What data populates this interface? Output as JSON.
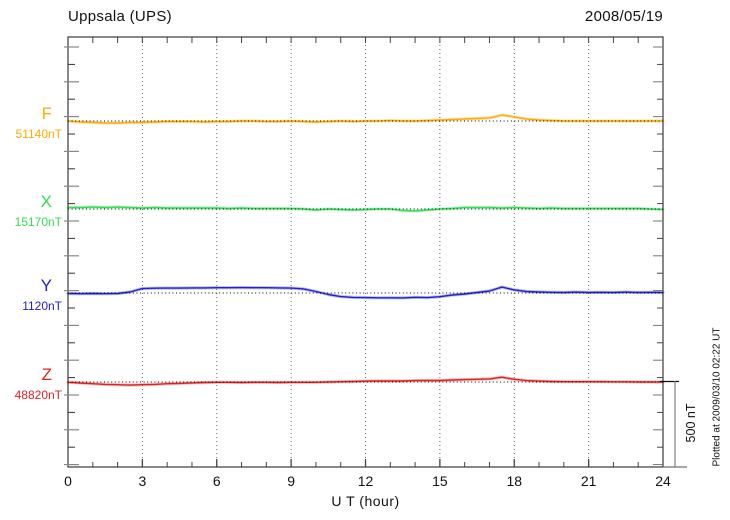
{
  "header": {
    "station_title": "Uppsala (UPS)",
    "date": "2008/05/19"
  },
  "plot_note": "Plotted at 2009/03/10 02:22 UT",
  "scale_bar_label": "500 nT",
  "xaxis_label": "U T (hour)",
  "channels": [
    {
      "label": "F",
      "baseline_label": "51140nT"
    },
    {
      "label": "X",
      "baseline_label": "15170nT"
    },
    {
      "label": "Y",
      "baseline_label": "1120nT"
    },
    {
      "label": "Z",
      "baseline_label": "48820nT"
    }
  ],
  "chart_data": {
    "type": "line",
    "title": "Uppsala (UPS) magnetogram, 2008/05/19",
    "xlabel": "U T (hour)",
    "xlim": [
      0,
      24
    ],
    "x_ticks": [
      0,
      3,
      6,
      9,
      12,
      15,
      18,
      21,
      24
    ],
    "x_step_hours": 0.5,
    "grid": "dotted vertical lines every 3 hours; dotted horizontal baseline per channel",
    "scale_bar": {
      "nT": 500,
      "label": "500 nT"
    },
    "series": [
      {
        "name": "F",
        "baseline_nT": 51140,
        "color": "#FFAA00",
        "deviation_nT": [
          0,
          -6,
          -9,
          -12,
          -12,
          -9,
          -9,
          -6,
          -3,
          -3,
          -3,
          -6,
          -3,
          -3,
          0,
          0,
          -3,
          -3,
          0,
          -3,
          -6,
          -3,
          0,
          -3,
          0,
          0,
          3,
          0,
          0,
          3,
          6,
          9,
          12,
          15,
          18,
          35,
          24,
          12,
          6,
          3,
          0,
          0,
          0,
          0,
          0,
          0,
          0,
          0,
          0
        ]
      },
      {
        "name": "X",
        "baseline_nT": 15170,
        "color": "#33DD55",
        "deviation_nT": [
          9,
          9,
          12,
          9,
          12,
          9,
          6,
          9,
          6,
          6,
          6,
          6,
          6,
          3,
          6,
          3,
          3,
          3,
          3,
          0,
          -6,
          0,
          -3,
          -6,
          -3,
          0,
          0,
          -9,
          -12,
          -6,
          0,
          3,
          9,
          9,
          9,
          6,
          9,
          6,
          3,
          6,
          3,
          3,
          3,
          3,
          3,
          3,
          3,
          0,
          -3
        ]
      },
      {
        "name": "Y",
        "baseline_nT": 1120,
        "color": "#2222CC",
        "deviation_nT": [
          -3,
          -4,
          -3,
          -4,
          -3,
          6,
          26,
          28,
          29,
          29,
          30,
          30,
          31,
          31,
          32,
          31,
          31,
          30,
          29,
          24,
          9,
          -9,
          -21,
          -26,
          -27,
          -28,
          -28,
          -29,
          -25,
          -27,
          -22,
          -12,
          -6,
          3,
          12,
          35,
          18,
          9,
          6,
          4,
          3,
          5,
          3,
          4,
          3,
          5,
          3,
          4,
          3
        ]
      },
      {
        "name": "Z",
        "baseline_nT": 48820,
        "color": "#DD2222",
        "deviation_nT": [
          -2,
          -6,
          -10,
          -14,
          -16,
          -18,
          -16,
          -14,
          -10,
          -8,
          -5,
          -3,
          -2,
          -2,
          -3,
          -2,
          -2,
          -3,
          -2,
          -2,
          -2,
          0,
          2,
          3,
          5,
          6,
          6,
          6,
          8,
          9,
          9,
          12,
          14,
          16,
          18,
          28,
          16,
          8,
          5,
          3,
          2,
          2,
          2,
          2,
          1,
          1,
          0,
          0,
          0
        ]
      }
    ]
  }
}
